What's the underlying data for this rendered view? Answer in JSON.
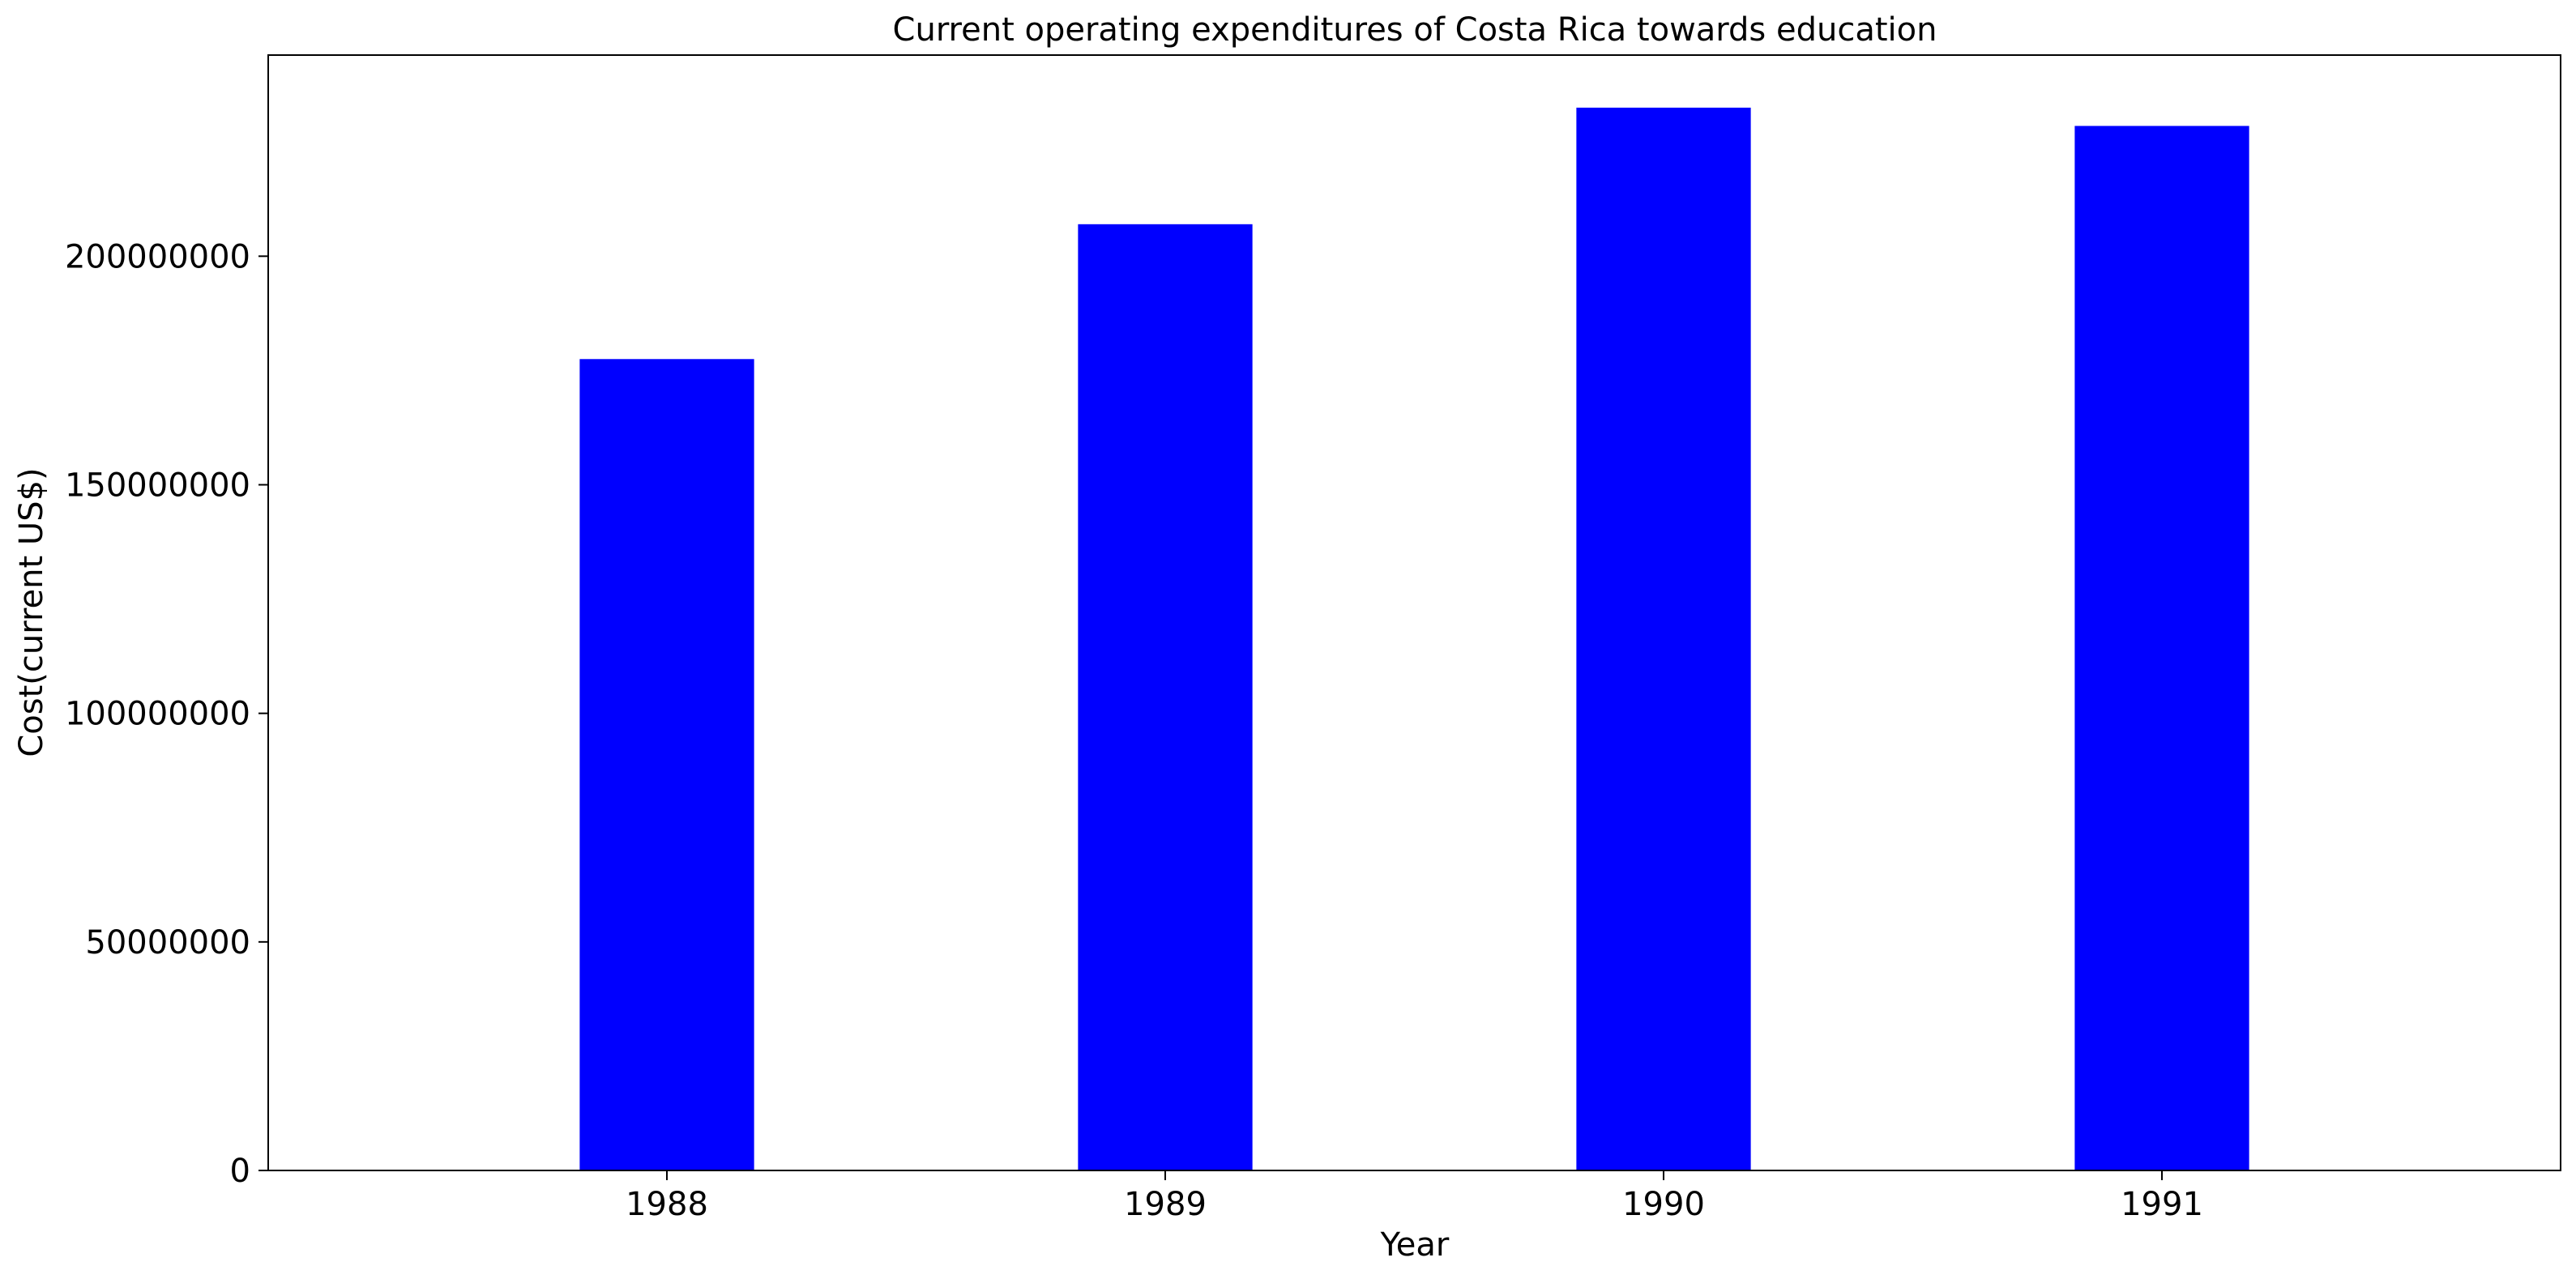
{
  "chart_data": {
    "type": "bar",
    "title": "Current operating expenditures of Costa Rica towards education",
    "xlabel": "Year",
    "ylabel": "Cost(current US$)",
    "categories": [
      "1988",
      "1989",
      "1990",
      "1991"
    ],
    "values": [
      177500000,
      207000000,
      232500000,
      228500000
    ],
    "ylim": [
      0,
      244000000
    ],
    "yticks": [
      0,
      50000000,
      100000000,
      150000000,
      200000000
    ],
    "ytick_labels": [
      "0",
      "50000000",
      "100000000",
      "150000000",
      "200000000"
    ],
    "bar_color": "#0000ff",
    "grid": false,
    "legend": "none"
  }
}
